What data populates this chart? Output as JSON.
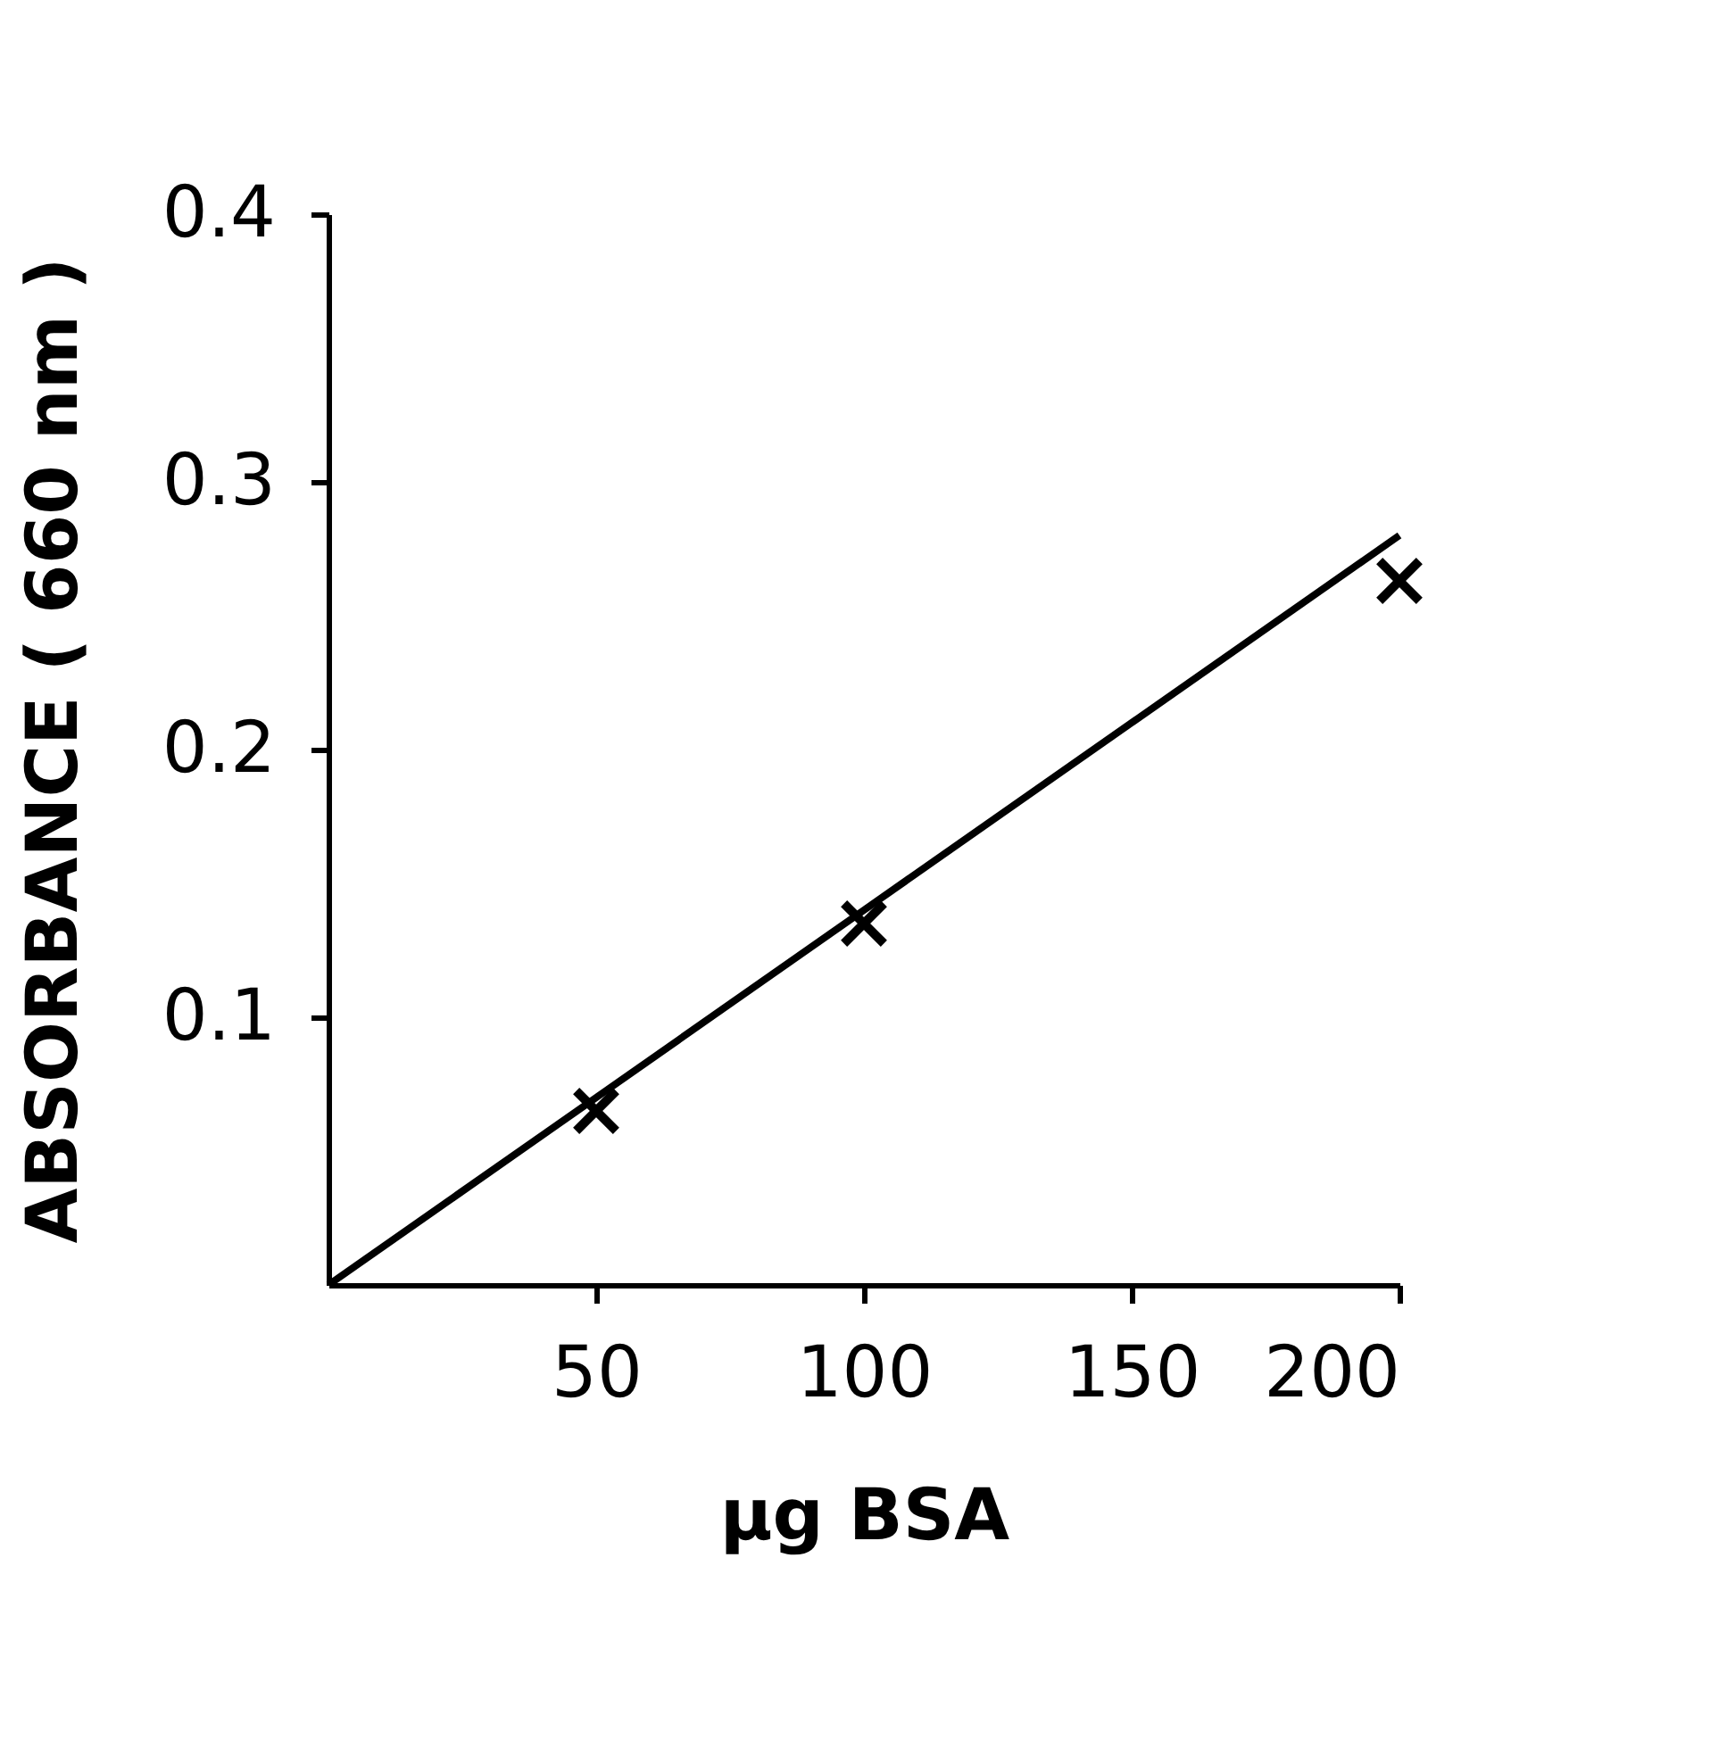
{
  "chart_data": {
    "type": "scatter",
    "xlabel": "μg BSA",
    "ylabel": "ABSORBANCE ( 660 nm )",
    "series": [
      {
        "x": [
          50,
          100,
          200
        ],
        "values": [
          0.065,
          0.135,
          0.263
        ],
        "color": "#000000",
        "marker": "cross"
      },
      {
        "type": "line",
        "x": [
          0,
          200
        ],
        "values": [
          0,
          0.28
        ],
        "color": "#000000",
        "marker": "none"
      }
    ],
    "xlim": [
      0,
      200
    ],
    "ylim": [
      0,
      0.4
    ],
    "xticks": [
      50,
      100,
      150,
      200
    ],
    "yticks": [
      0.1,
      0.2,
      0.3,
      0.4
    ],
    "grid": false
  }
}
